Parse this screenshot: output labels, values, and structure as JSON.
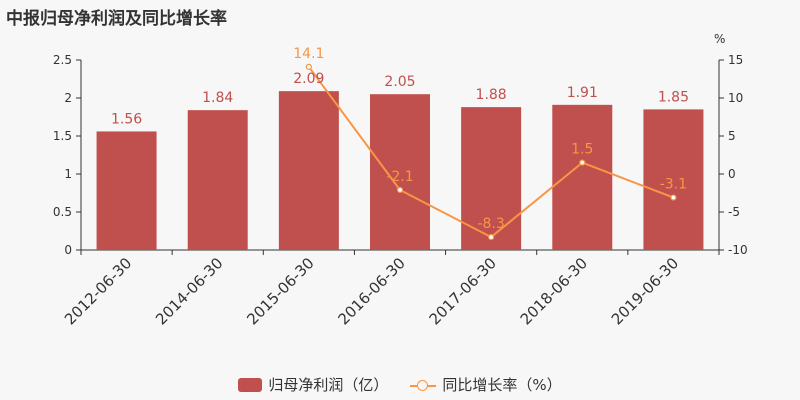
{
  "title": "中报归母净利润及同比增长率",
  "colors": {
    "bar": "#c0504d",
    "bar_label": "#c0504d",
    "line": "#f79646",
    "axis": "#333333",
    "background": "#f7f7f7"
  },
  "chart_data": {
    "type": "bar",
    "title": "中报归母净利润及同比增长率",
    "categories": [
      "2012-06-30",
      "2014-06-30",
      "2015-06-30",
      "2016-06-30",
      "2017-06-30",
      "2018-06-30",
      "2019-06-30"
    ],
    "series": [
      {
        "name": "归母净利润（亿）",
        "type": "bar",
        "axis": "left",
        "values": [
          1.56,
          1.84,
          2.09,
          2.05,
          1.88,
          1.91,
          1.85
        ],
        "labels": [
          "1.56",
          "1.84",
          "2.09",
          "2.05",
          "1.88",
          "1.91",
          "1.85"
        ]
      },
      {
        "name": "同比增长率（%）",
        "type": "line",
        "axis": "right",
        "values": [
          null,
          null,
          14.1,
          -2.1,
          -8.3,
          1.5,
          -3.1
        ],
        "labels": [
          "",
          "",
          "14.1",
          "-2.1",
          "-8.3",
          "1.5",
          "-3.1"
        ]
      }
    ],
    "y_left": {
      "min": 0,
      "max": 2.5,
      "ticks": [
        0,
        0.5,
        1,
        1.5,
        2,
        2.5
      ],
      "tick_labels": [
        "0",
        "0.5",
        "1",
        "1.5",
        "2",
        "2.5"
      ]
    },
    "y_right": {
      "min": -10,
      "max": 15,
      "ticks": [
        -10,
        -5,
        0,
        5,
        10,
        15
      ],
      "tick_labels": [
        "-10",
        "-5",
        "0",
        "5",
        "10",
        "15"
      ],
      "unit": "%"
    },
    "grid": false,
    "legend_position": "bottom-center"
  },
  "legend": {
    "bar_label": "归母净利润（亿）",
    "line_label": "同比增长率（%）"
  }
}
